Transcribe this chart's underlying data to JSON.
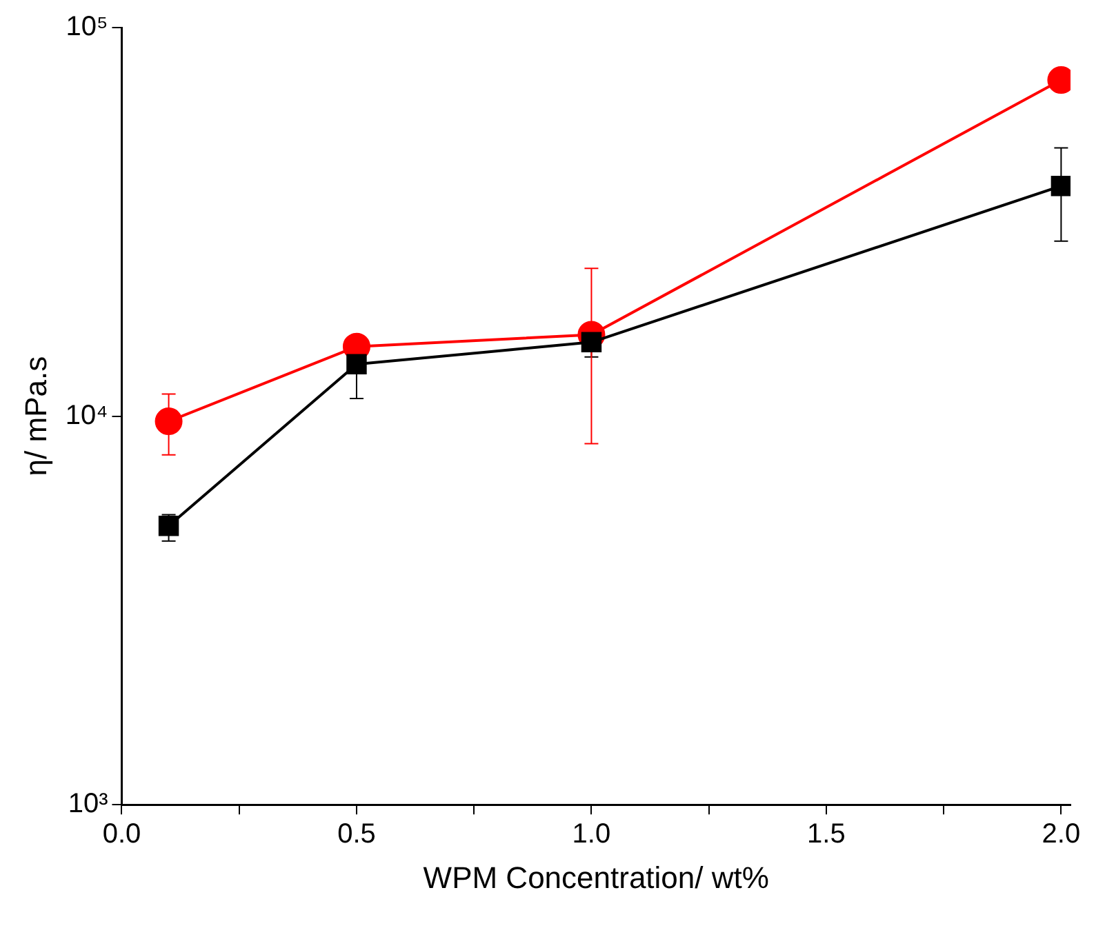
{
  "chart_data": {
    "type": "line",
    "xlabel": "WPM Concentration/ wt%",
    "ylabel": "η/ mPa.s",
    "x": [
      0.1,
      0.5,
      1.0,
      2.0
    ],
    "series": [
      {
        "color": "#000000",
        "marker": "square",
        "values": [
          5220,
          13600,
          15500,
          39100
        ],
        "errors": [
          [
            4770,
            5580
          ],
          [
            11100,
            13600
          ],
          [
            14200,
            16500
          ],
          [
            28200,
            49000
          ]
        ]
      },
      {
        "color": "#ff0000",
        "marker": "circle",
        "values": [
          9700,
          15100,
          16200,
          73300
        ],
        "errors": [
          [
            7950,
            11400
          ],
          null,
          [
            8500,
            24000
          ],
          null
        ]
      }
    ],
    "log": "y",
    "grid": false,
    "legend": false,
    "line_style": "solid",
    "xlim": [
      0,
      2.02
    ],
    "xticks": [
      {
        "value": 0,
        "label": "0.0"
      },
      {
        "value": 0.25,
        "label": null
      },
      0.5,
      {
        "value": 0.75,
        "label": null
      },
      {
        "value": 1,
        "label": "1.0"
      },
      {
        "value": 1.25,
        "label": null
      },
      1.5,
      {
        "value": 1.75,
        "label": null
      },
      {
        "value": 2,
        "label": "2.0"
      }
    ],
    "ylim": [
      1000,
      100000
    ],
    "yticks": [
      {
        "value": 1000,
        "label": "10³"
      },
      {
        "value": 10000,
        "label": "10⁴"
      },
      {
        "value": 100000,
        "label": "10⁵"
      }
    ]
  }
}
